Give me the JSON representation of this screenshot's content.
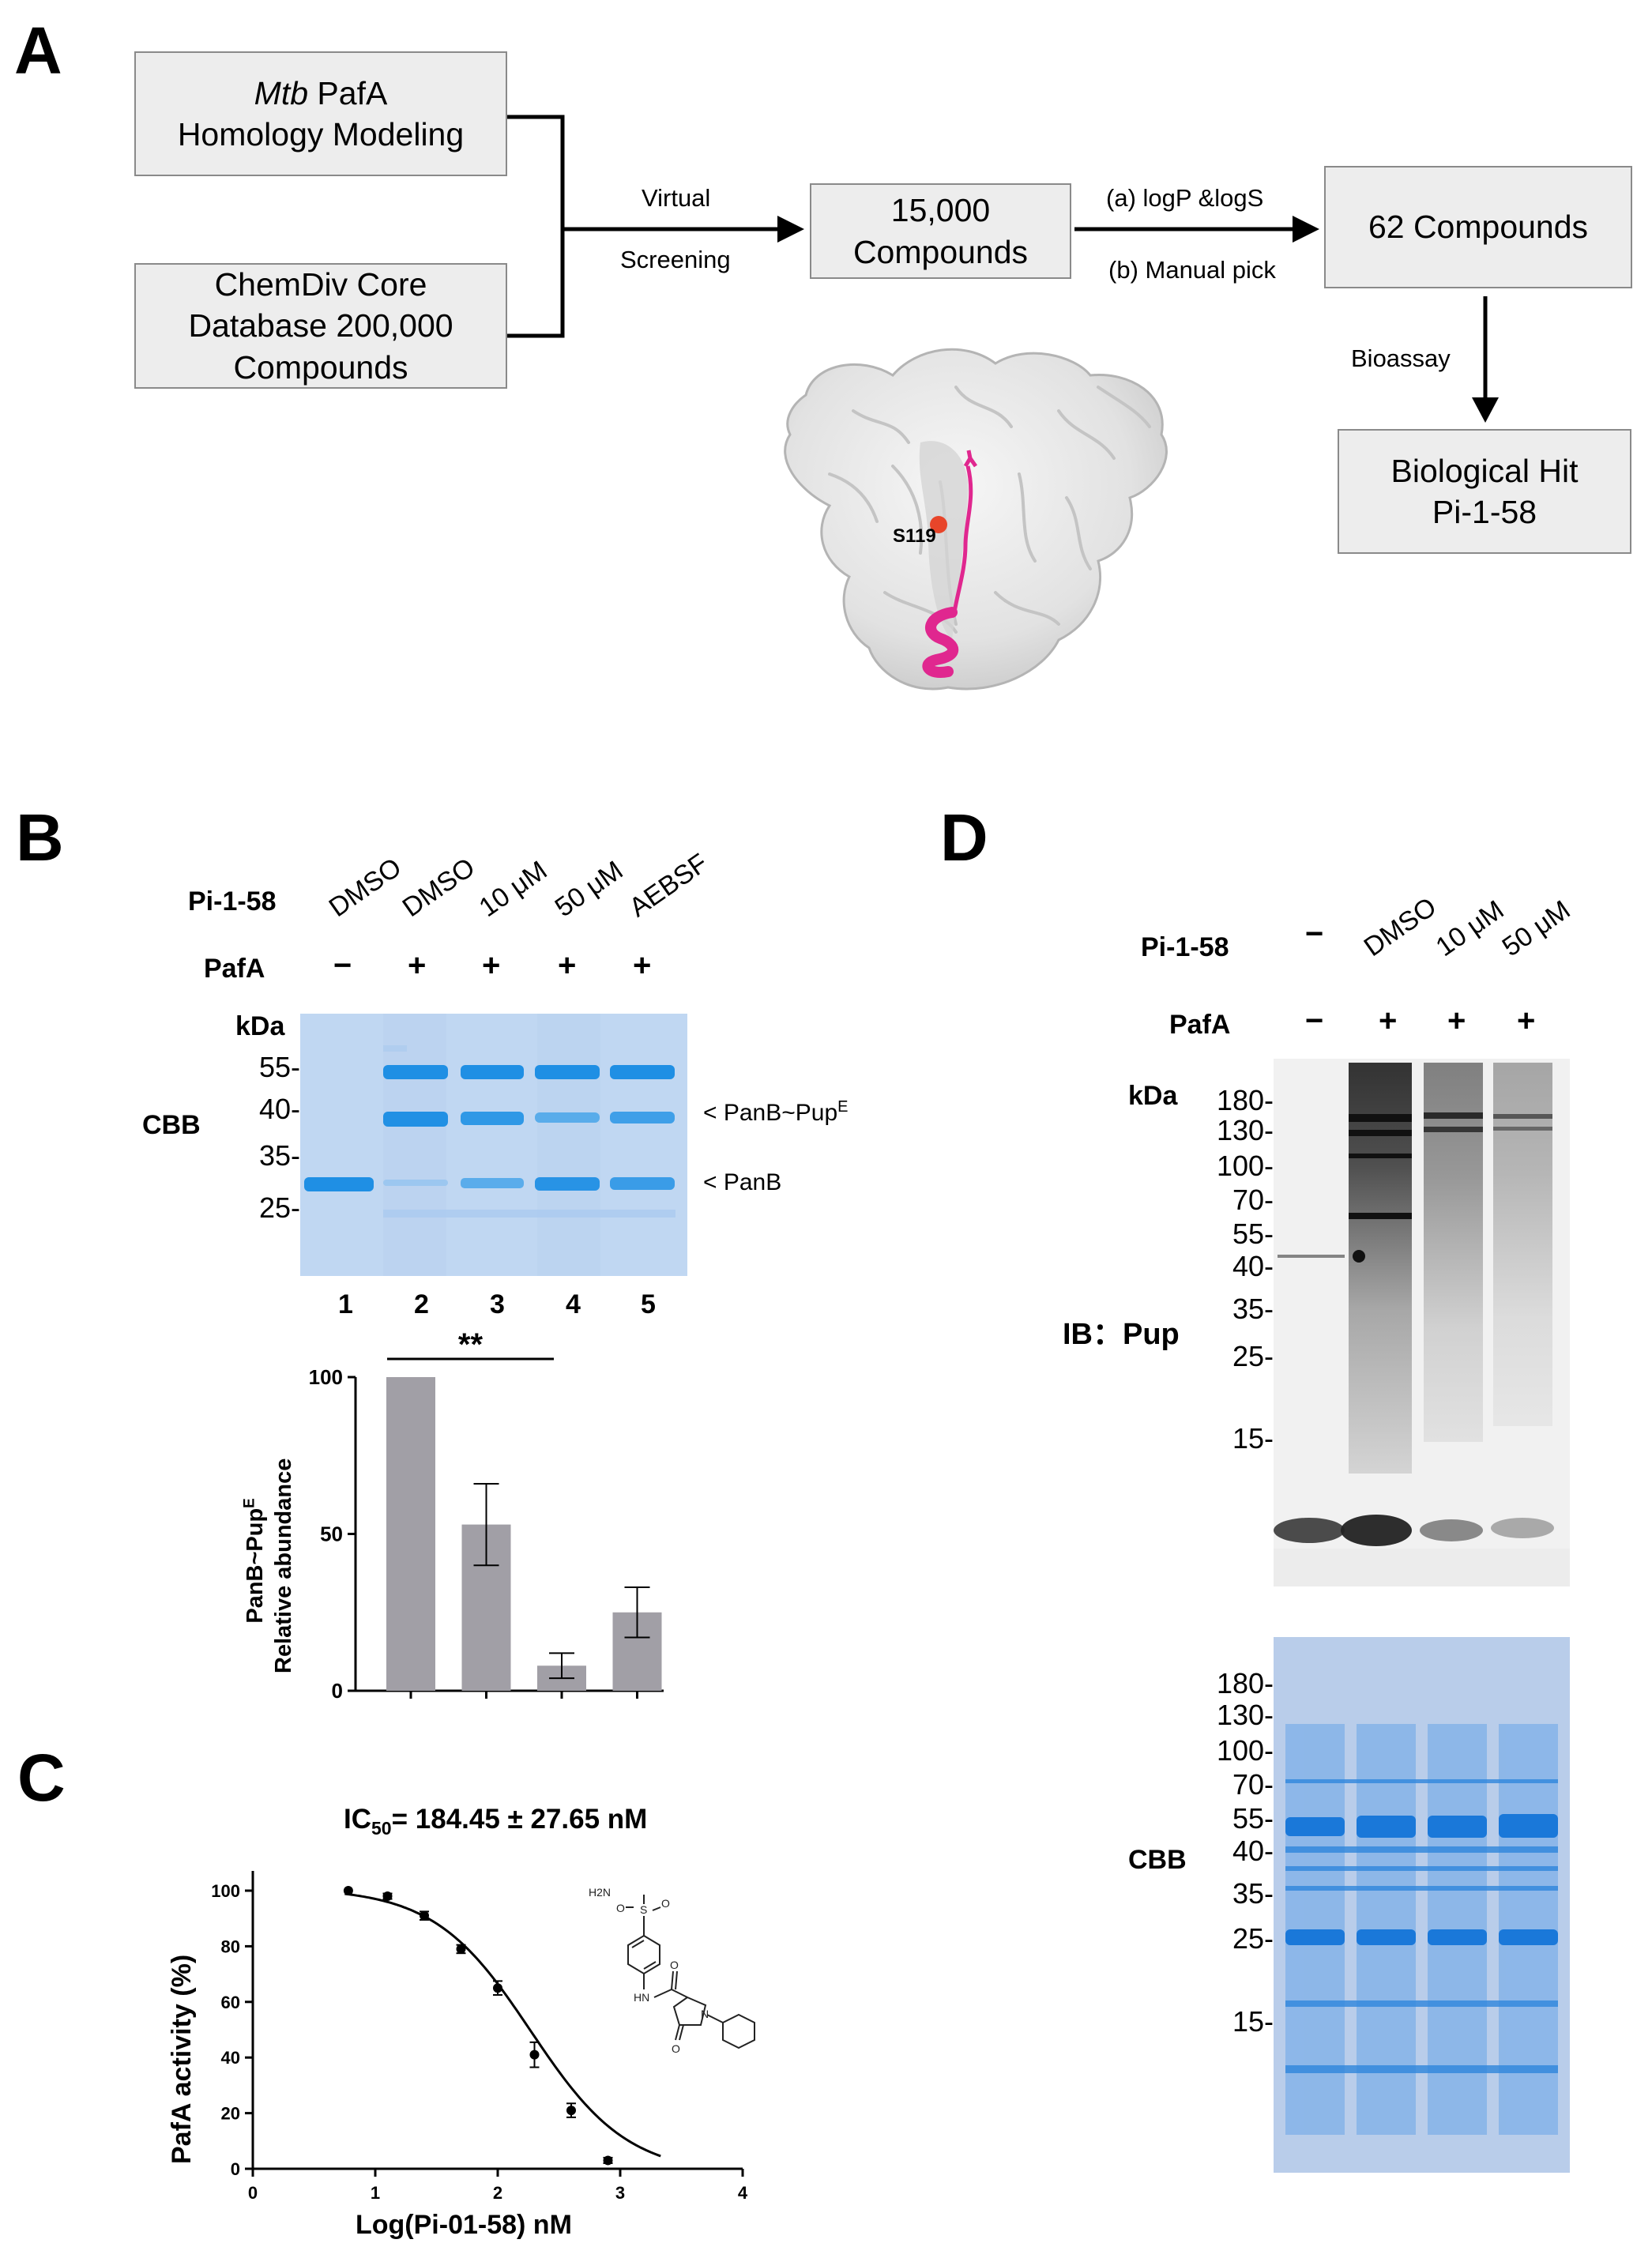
{
  "panels": {
    "a": "A",
    "b": "B",
    "c": "C",
    "d": "D"
  },
  "panel_a": {
    "box_mtb_italic": "Mtb",
    "box_mtb_rest": " PafA",
    "box_mtb_line2": "Homology Modeling",
    "box_chemdiv": [
      "ChemDiv Core",
      "Database 200,000",
      "Compounds"
    ],
    "arrow1_top": "Virtual",
    "arrow1_bottom": "Screening",
    "box_15000": [
      "15,000",
      "Compounds"
    ],
    "arrow2_top": "(a) logP &logS",
    "arrow2_bottom": "(b) Manual pick",
    "box_62": "62 Compounds",
    "arrow3_label": "Bioassay",
    "box_hit": [
      "Biological Hit",
      "Pi-1-58"
    ],
    "structure_label": "S119",
    "colors": {
      "box_fill": "#ededed",
      "box_border": "#8a8a8a",
      "protein_surface": "#e6e6e6",
      "peptide": "#e0278f",
      "residue": "#e8452a"
    }
  },
  "panel_b": {
    "row1_label": "Pi-1-58",
    "row2_label": "PafA",
    "lanes_treatment": [
      "DMSO",
      "DMSO",
      "10 μM",
      "50 μM",
      "AEBSF"
    ],
    "lanes_pafa": [
      "−",
      "+",
      "+",
      "+",
      "+"
    ],
    "kda_label": "kDa",
    "markers": [
      "55-",
      "40-",
      "35-",
      "25-"
    ],
    "stain_label": "CBB",
    "band_label_1": "< PanB~Pup",
    "band_label_1_sup": "E",
    "band_label_2": "< PanB",
    "lane_numbers": [
      "1",
      "2",
      "3",
      "4",
      "5"
    ],
    "gel_color": "#c3daf4",
    "band_color": "#1f8fe4",
    "chart_data": {
      "type": "bar",
      "categories": [
        "2",
        "3",
        "4",
        "5"
      ],
      "values": [
        100,
        53,
        8,
        25
      ],
      "error": [
        0,
        13,
        4,
        8
      ],
      "ylabel_line1": "PanB~Pup",
      "ylabel_line1_sup": "E",
      "ylabel_line2": "Relative abundance",
      "yticks": [
        "0",
        "50",
        "100"
      ],
      "ylim": [
        0,
        100
      ],
      "significance": "**",
      "bar_color": "#a19fa6"
    }
  },
  "panel_c": {
    "title_prefix": "IC",
    "title_sub": "50",
    "title_rest": "= 184.45 ± 27.65 nM",
    "structure_labels": {
      "sulfonamide_h2n": "H2N",
      "sulfonyl_o1": "O",
      "sulfonyl_s": "S",
      "sulfonyl_o2": "O",
      "amide_o": "O",
      "amide_hn": "HN",
      "ring_n": "N",
      "lactam_o": "O"
    },
    "chart_data": {
      "type": "scatter",
      "xlabel": "Log(Pi-01-58) nM",
      "ylabel": "PafA activity (%)",
      "xlim": [
        0,
        4
      ],
      "ylim": [
        0,
        100
      ],
      "xticks": [
        "0",
        "1",
        "2",
        "3",
        "4"
      ],
      "yticks": [
        "0",
        "20",
        "40",
        "60",
        "80",
        "100"
      ],
      "x": [
        0.78,
        1.1,
        1.4,
        1.7,
        2.0,
        2.3,
        2.6,
        2.9
      ],
      "y": [
        100,
        98,
        91,
        79,
        65,
        41,
        21,
        3
      ],
      "error": [
        0,
        1,
        1.5,
        1.5,
        2.5,
        4.5,
        2.5,
        1
      ],
      "fit": {
        "model": "four-parameter logistic",
        "top": 101,
        "bottom": -2,
        "log_ic50": 2.27,
        "hill": 1.1
      }
    }
  },
  "panel_d": {
    "row1_label": "Pi-1-58",
    "row2_label": "PafA",
    "lanes_treatment": [
      "−",
      "DMSO",
      "10 μM",
      "50 μM"
    ],
    "lanes_pafa": [
      "−",
      "+",
      "+",
      "+"
    ],
    "kda_label": "kDa",
    "blot_markers": [
      "180-",
      "130-",
      "100-",
      "70-",
      "55-",
      "40-",
      "35-",
      "25-",
      "15-"
    ],
    "blot_label": "IB：Pup",
    "cbb_markers": [
      "180-",
      "130-",
      "100-",
      "70-",
      "55-",
      "40-",
      "35-",
      "25-",
      "15-"
    ],
    "cbb_label": "CBB",
    "blot_bg": "#f1f1f1",
    "cbb_bg": "#b9cdea",
    "cbb_band": "#1a78d9"
  }
}
